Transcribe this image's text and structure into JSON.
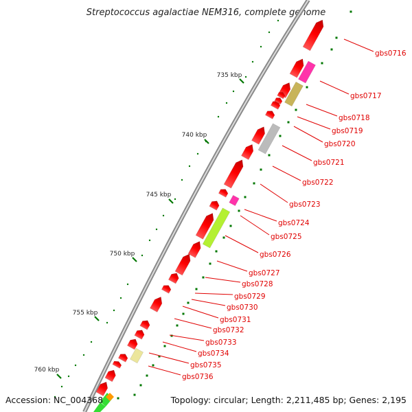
{
  "title": "Streptococcus agalactiae NEM316, complete genome",
  "footer": {
    "accession": "Accession: NC_004368",
    "topology": "Topology: circular; Length: 2,211,485 bp; Genes: 2,195"
  },
  "colors": {
    "gene_cds": "#ff0000",
    "backbone": "#777777",
    "ticks": "#007700",
    "label": "#e00000",
    "magenta": "#ff33aa",
    "olive": "#c8b45a",
    "gray": "#bbbbbb",
    "lime": "#b4f032",
    "khaki": "#ece69c",
    "green": "#33dd33",
    "orange": "#ff9900"
  },
  "kbp_labels": [
    "735 kbp",
    "740 kbp",
    "745 kbp",
    "750 kbp",
    "755 kbp",
    "760 kbp"
  ],
  "genes": [
    {
      "label": "gbs0716",
      "color": "red"
    },
    {
      "label": "gbs0717",
      "color": "magenta"
    },
    {
      "label": "gbs0718",
      "color": "olive"
    },
    {
      "label": "gbs0719",
      "color": "red"
    },
    {
      "label": "gbs0720",
      "color": "red"
    },
    {
      "label": "gbs0721",
      "color": "gray"
    },
    {
      "label": "gbs0722",
      "color": "red"
    },
    {
      "label": "gbs0723",
      "color": "red"
    },
    {
      "label": "gbs0724",
      "color": "magenta"
    },
    {
      "label": "gbs0725",
      "color": "red"
    },
    {
      "label": "gbs0726",
      "color": "lime"
    },
    {
      "label": "gbs0727",
      "color": "red"
    },
    {
      "label": "gbs0728",
      "color": "red"
    },
    {
      "label": "gbs0729",
      "color": "red"
    },
    {
      "label": "gbs0730",
      "color": "red"
    },
    {
      "label": "gbs0731",
      "color": "red"
    },
    {
      "label": "gbs0732",
      "color": "red"
    },
    {
      "label": "gbs0733",
      "color": "red"
    },
    {
      "label": "gbs0734",
      "color": "red"
    },
    {
      "label": "gbs0735",
      "color": "khaki"
    },
    {
      "label": "gbs0736",
      "color": "red"
    }
  ]
}
